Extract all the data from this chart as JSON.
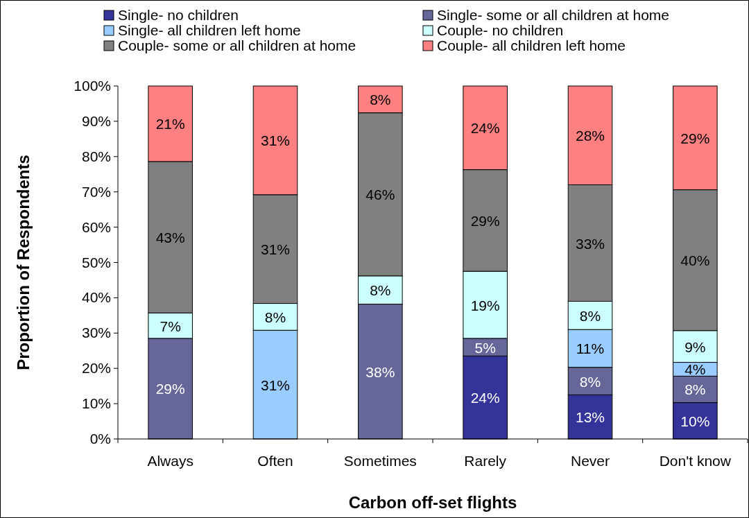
{
  "chart_data": {
    "type": "bar",
    "stacked": true,
    "xlabel": "Carbon off-set flights",
    "ylabel": "Proportion of Respondents",
    "categories": [
      "Always",
      "Often",
      "Sometimes",
      "Rarely",
      "Never",
      "Don't know"
    ],
    "series": [
      {
        "name": "Single- no children",
        "color": "#333399",
        "values": [
          0,
          0,
          0,
          23.5,
          12.5,
          10.3
        ],
        "value_labels": [
          null,
          null,
          null,
          "24%",
          "13%",
          "10%"
        ]
      },
      {
        "name": "Single- some or all children at home",
        "color": "#666699",
        "values": [
          28.5,
          0,
          38.2,
          5,
          7.8,
          7.5
        ],
        "value_labels": [
          "29%",
          null,
          "38%",
          "5%",
          "8%",
          "8%"
        ]
      },
      {
        "name": "Single- all children left home",
        "color": "#99ccff",
        "values": [
          0,
          30.8,
          0,
          0,
          10.7,
          3.9
        ],
        "value_labels": [
          null,
          "31%",
          null,
          null,
          "11%",
          "4%"
        ]
      },
      {
        "name": "Couple- no children",
        "color": "#ccffff",
        "values": [
          7.2,
          7.6,
          8,
          19,
          8,
          9
        ],
        "value_labels": [
          "7%",
          "8%",
          "8%",
          "19%",
          "8%",
          "9%"
        ]
      },
      {
        "name": "Couple- some or all children at home",
        "color": "#808080",
        "values": [
          42.9,
          30.8,
          46.2,
          28.8,
          33,
          39.9
        ],
        "value_labels": [
          "43%",
          "31%",
          "46%",
          "29%",
          "33%",
          "40%"
        ]
      },
      {
        "name": "Couple- all children left home",
        "color": "#ff8080",
        "values": [
          21.4,
          30.8,
          7.6,
          23.7,
          28,
          29.4
        ],
        "value_labels": [
          "21%",
          "31%",
          "8%",
          "24%",
          "28%",
          "29%"
        ]
      }
    ],
    "ylim": [
      0,
      100
    ],
    "yticks": [
      {
        "value": 0,
        "label": "0%"
      },
      {
        "value": 10,
        "label": "10%"
      },
      {
        "value": 20,
        "label": "20%"
      },
      {
        "value": 30,
        "label": "30%"
      },
      {
        "value": 40,
        "label": "40%"
      },
      {
        "value": 50,
        "label": "50%"
      },
      {
        "value": 60,
        "label": "60%"
      },
      {
        "value": 70,
        "label": "70%"
      },
      {
        "value": 80,
        "label": "80%"
      },
      {
        "value": 90,
        "label": "90%"
      },
      {
        "value": 100,
        "label": "100%"
      }
    ],
    "grid": false,
    "legend": "top"
  }
}
